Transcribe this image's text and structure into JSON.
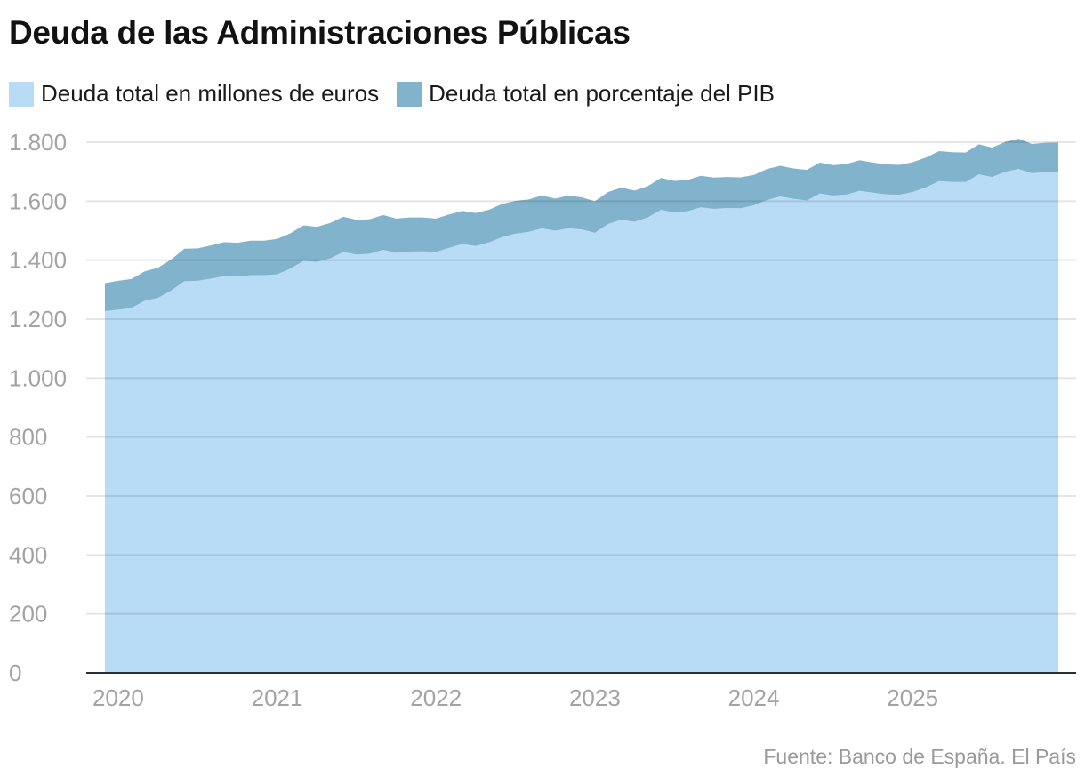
{
  "title": "Deuda de las Administraciones Públicas",
  "source": "Fuente: Banco de España. El País",
  "colors": {
    "millones": "#b8dbf6",
    "porcentaje": "#82b3cc",
    "grid": "#e3e3e3",
    "axis": "#2b2f36"
  },
  "chart_data": {
    "type": "area",
    "stacked": true,
    "title": "Deuda de las Administraciones Públicas",
    "xlabel": "",
    "ylabel": "",
    "ylim": [
      0,
      1800
    ],
    "yticks": [
      0,
      200,
      400,
      600,
      800,
      1000,
      1200,
      1400,
      1600,
      1800
    ],
    "ytick_labels": [
      "0",
      "200",
      "400",
      "600",
      "800",
      "1.000",
      "1.200",
      "1.400",
      "1.600",
      "1.800"
    ],
    "xticks": [
      "2020",
      "2021",
      "2022",
      "2023",
      "2024",
      "2025"
    ],
    "grid": true,
    "legend_position": "top-left",
    "x_start": "2019-12",
    "x_frequency": "monthly",
    "series": [
      {
        "name": "Deuda total en millones de euros",
        "color": "#b8dbf6",
        "values": [
          1227,
          1232,
          1238,
          1262,
          1272,
          1297,
          1329,
          1330,
          1337,
          1346,
          1344,
          1349,
          1349,
          1352,
          1371,
          1397,
          1394,
          1406,
          1428,
          1419,
          1422,
          1435,
          1425,
          1429,
          1430,
          1428,
          1442,
          1455,
          1448,
          1460,
          1478,
          1490,
          1496,
          1508,
          1500,
          1508,
          1504,
          1493,
          1523,
          1537,
          1530,
          1545,
          1571,
          1561,
          1566,
          1579,
          1574,
          1577,
          1576,
          1586,
          1604,
          1616,
          1608,
          1602,
          1626,
          1619,
          1623,
          1635,
          1629,
          1623,
          1622,
          1631,
          1647,
          1668,
          1665,
          1665,
          1691,
          1682,
          1700,
          1709,
          1695,
          1699,
          1700
        ]
      },
      {
        "name": "Deuda total en porcentaje del PIB",
        "color": "#82b3cc",
        "values": [
          95,
          98,
          98,
          100,
          102,
          105,
          110,
          110,
          113,
          115,
          115,
          117,
          117,
          120,
          120,
          121,
          119,
          120,
          119,
          118,
          117,
          118,
          116,
          116,
          115,
          113,
          113,
          112,
          112,
          111,
          113,
          111,
          110,
          111,
          109,
          111,
          109,
          107,
          108,
          109,
          106,
          106,
          108,
          108,
          106,
          107,
          106,
          105,
          105,
          103,
          105,
          104,
          103,
          104,
          105,
          103,
          103,
          104,
          102,
          102,
          101,
          101,
          101,
          102,
          101,
          100,
          102,
          100,
          101,
          103,
          99,
          99,
          99
        ]
      }
    ]
  }
}
